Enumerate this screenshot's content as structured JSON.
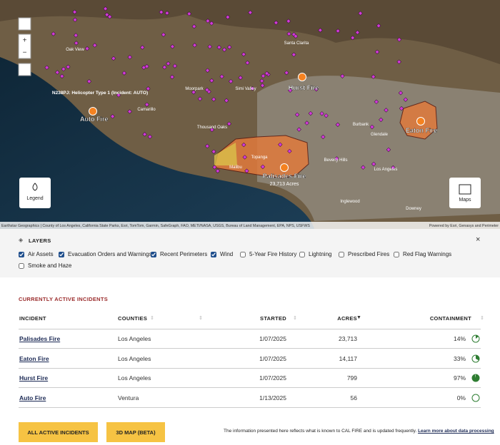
{
  "map": {
    "places": [
      "Santa Clarita",
      "Simi Valley",
      "Moorpark",
      "Camarillo",
      "Thousand Oaks",
      "Burbank",
      "Glendale",
      "Los Angeles",
      "Beverly Hills",
      "Inglewood",
      "Downey",
      "Oak View",
      "Malibu",
      "Topanga"
    ],
    "aircraft": "N238PJ: Helicopter Type 1 (Incident: AUTO)",
    "fires": [
      {
        "name": "Auto Fire"
      },
      {
        "name": "Hurst Fire"
      },
      {
        "name": "Eaton Fire"
      },
      {
        "name": "Palisades Fire",
        "sub": "23,713 Acres"
      }
    ],
    "legend": "Legend",
    "maps": "Maps",
    "attribution": "Earthstar Geographics | County of Los Angeles, California State Parks, Esri, TomTom, Garmin, SafeGraph, FAO, METI/NASA, USGS, Bureau of Land Management, EPA, NPS, USFWS",
    "powered": "Powered by Esri, Genasys and Perimeter"
  },
  "layers": {
    "title": "LAYERS",
    "items": [
      {
        "label": "Air Assets",
        "checked": true
      },
      {
        "label": "Evacuation Orders and Warnings",
        "checked": true
      },
      {
        "label": "Recent Perimeters",
        "checked": true
      },
      {
        "label": "Wind",
        "checked": true
      },
      {
        "label": "5-Year Fire History",
        "checked": false
      },
      {
        "label": "Lightning",
        "checked": false
      },
      {
        "label": "Prescribed Fires",
        "checked": false
      },
      {
        "label": "Red Flag Warnings",
        "checked": false
      },
      {
        "label": "Smoke and Haze",
        "checked": false
      }
    ]
  },
  "incidents": {
    "heading": "CURRENTLY ACTIVE INCIDENTS",
    "columns": [
      "INCIDENT",
      "COUNTIES",
      "STARTED",
      "ACRES",
      "CONTAINMENT"
    ],
    "rows": [
      {
        "name": "Palisades Fire",
        "county": "Los Angeles",
        "started": "1/07/2025",
        "acres": "23,713",
        "containment": {
          "value": 14,
          "label": "14%"
        }
      },
      {
        "name": "Eaton Fire",
        "county": "Los Angeles",
        "started": "1/07/2025",
        "acres": "14,117",
        "containment": {
          "value": 33,
          "label": "33%"
        }
      },
      {
        "name": "Hurst Fire",
        "county": "Los Angeles",
        "started": "1/07/2025",
        "acres": "799",
        "containment": {
          "value": 97,
          "label": "97%"
        }
      },
      {
        "name": "Auto Fire",
        "county": "Ventura",
        "started": "1/13/2025",
        "acres": "56",
        "containment": {
          "value": 0,
          "label": "0%"
        }
      }
    ]
  },
  "buttons": [
    "ALL ACTIVE INCIDENTS",
    "3D MAP (BETA)"
  ],
  "footer": {
    "text": "The information presented here reflects what is known to CAL FIRE and is updated frequently.",
    "link": "Learn more about data processing"
  }
}
